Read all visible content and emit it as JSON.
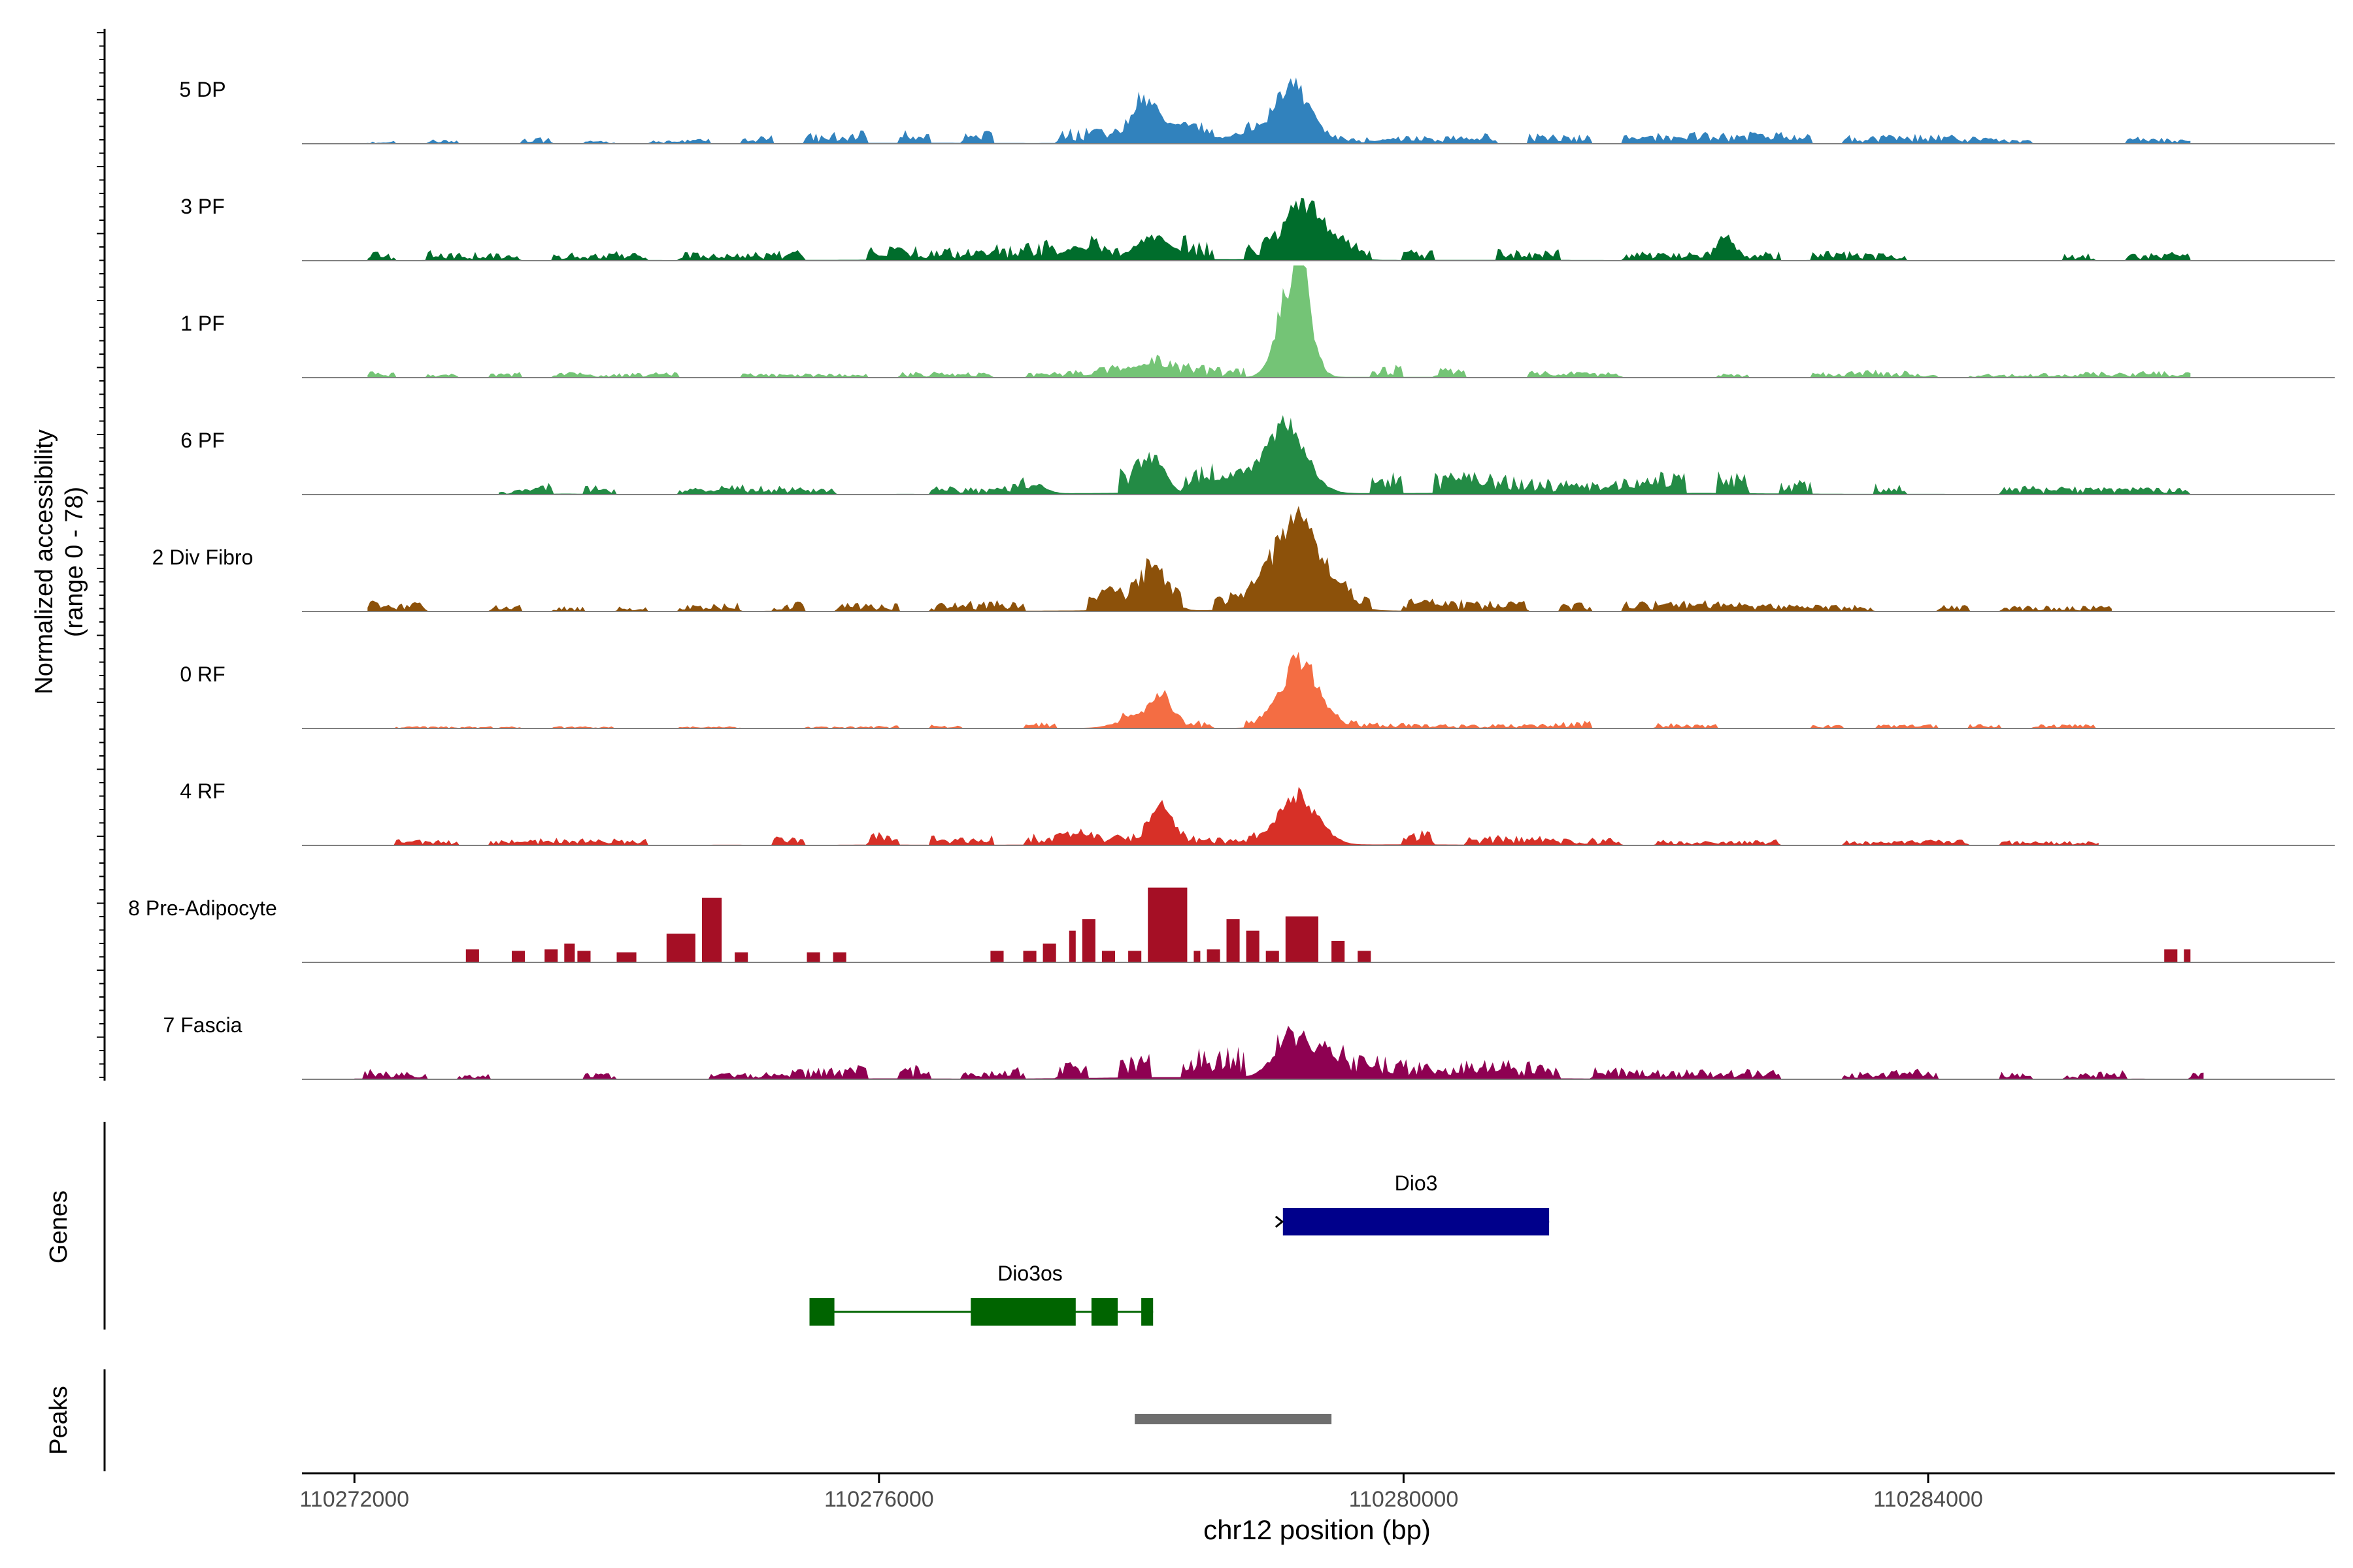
{
  "chart_data": {
    "type": "area",
    "title": "",
    "ylabel_line1": "Normalized accessibility",
    "ylabel_line2": "(range 0 - 78)",
    "xlabel": "chr12 position (bp)",
    "xlim": [
      110271600,
      110287100
    ],
    "ylim": [
      0,
      78
    ],
    "xticks": [
      110272000,
      110276000,
      110280000,
      110284000
    ],
    "xtick_labels": [
      "110272000",
      "110276000",
      "110280000",
      "110284000"
    ],
    "genes_label": "Genes",
    "peaks_label": "Peaks",
    "tracks": [
      {
        "name": "5 DP",
        "color": "#3182BD",
        "range": [
          110272000,
          110286000
        ],
        "base": [
          [
            110272200,
            1
          ],
          [
            110272600,
            2
          ],
          [
            110273000,
            1
          ],
          [
            110273400,
            3
          ],
          [
            110274000,
            1
          ],
          [
            110274500,
            2
          ],
          [
            110275100,
            4
          ],
          [
            110275800,
            6
          ],
          [
            110276400,
            7
          ],
          [
            110277200,
            5
          ],
          [
            110277600,
            8
          ],
          [
            110278600,
            6
          ],
          [
            110279800,
            3
          ],
          [
            110280600,
            5
          ],
          [
            110281600,
            4
          ],
          [
            110282000,
            5
          ],
          [
            110282700,
            6
          ],
          [
            110283400,
            4
          ],
          [
            110284000,
            5
          ],
          [
            110284600,
            2
          ],
          [
            110285200,
            4
          ],
          [
            110285900,
            3
          ]
        ],
        "peaks": [
          [
            110278050,
            28,
            110
          ],
          [
            110278350,
            10,
            120
          ],
          [
            110279150,
            38,
            130
          ],
          [
            110278750,
            6,
            110
          ]
        ]
      },
      {
        "name": "3 PF",
        "color": "#006D2C",
        "range": [
          110272100,
          110286000
        ],
        "base": [
          [
            110272200,
            4
          ],
          [
            110272600,
            5
          ],
          [
            110273200,
            3
          ],
          [
            110273800,
            4
          ],
          [
            110274300,
            5
          ],
          [
            110274800,
            3
          ],
          [
            110275300,
            5
          ],
          [
            110276000,
            7
          ],
          [
            110276600,
            6
          ],
          [
            110277000,
            8
          ],
          [
            110277600,
            9
          ],
          [
            110278600,
            10
          ],
          [
            110280000,
            5
          ],
          [
            110280800,
            6
          ],
          [
            110281400,
            5
          ],
          [
            110282000,
            4
          ],
          [
            110282600,
            4
          ],
          [
            110283200,
            5
          ],
          [
            110283800,
            3
          ],
          [
            110284400,
            4
          ],
          [
            110285000,
            3
          ],
          [
            110285600,
            4
          ]
        ],
        "peaks": [
          [
            110277500,
            8,
            120
          ],
          [
            110278100,
            16,
            140
          ],
          [
            110279200,
            40,
            120
          ],
          [
            110279450,
            10,
            120
          ],
          [
            110282450,
            12,
            60
          ]
        ]
      },
      {
        "name": "1 PF",
        "color": "#74C476",
        "range": [
          110272100,
          110286000
        ],
        "base": [
          [
            110272200,
            3
          ],
          [
            110272800,
            2
          ],
          [
            110273400,
            3
          ],
          [
            110274000,
            2
          ],
          [
            110274600,
            3
          ],
          [
            110275200,
            2
          ],
          [
            110275800,
            2
          ],
          [
            110276400,
            3
          ],
          [
            110277000,
            2
          ],
          [
            110277600,
            4
          ],
          [
            110278200,
            8
          ],
          [
            110278600,
            5
          ],
          [
            110280000,
            6
          ],
          [
            110280600,
            4
          ],
          [
            110281200,
            3
          ],
          [
            110281800,
            3
          ],
          [
            110282400,
            2
          ],
          [
            110283000,
            2
          ],
          [
            110283600,
            4
          ],
          [
            110284200,
            2
          ],
          [
            110284800,
            2
          ],
          [
            110285400,
            3
          ]
        ],
        "peaks": [
          [
            110279200,
            75,
            90
          ],
          [
            110279050,
            20,
            80
          ],
          [
            110278000,
            8,
            150
          ]
        ]
      },
      {
        "name": "6 PF",
        "color": "#238B45",
        "range": [
          110273100,
          110286100
        ],
        "base": [
          [
            110273200,
            2
          ],
          [
            110273600,
            7
          ],
          [
            110274000,
            3
          ],
          [
            110274600,
            4
          ],
          [
            110275000,
            5
          ],
          [
            110275500,
            3
          ],
          [
            110276200,
            5
          ],
          [
            110276800,
            3
          ],
          [
            110277400,
            9
          ],
          [
            110277800,
            12
          ],
          [
            110278600,
            12
          ],
          [
            110279800,
            10
          ],
          [
            110280300,
            12
          ],
          [
            110280800,
            9
          ],
          [
            110281400,
            6
          ],
          [
            110281800,
            10
          ],
          [
            110282300,
            12
          ],
          [
            110282800,
            8
          ],
          [
            110283400,
            5
          ],
          [
            110284000,
            5
          ],
          [
            110284600,
            4
          ],
          [
            110285200,
            4
          ],
          [
            110285800,
            3
          ]
        ],
        "peaks": [
          [
            110278100,
            25,
            80
          ],
          [
            110279100,
            48,
            150
          ],
          [
            110278700,
            12,
            150
          ],
          [
            110277200,
            6,
            80
          ]
        ]
      },
      {
        "name": "2 Div Fibro",
        "color": "#8C510A",
        "range": [
          110272100,
          110285400
        ],
        "base": [
          [
            110272300,
            5
          ],
          [
            110272800,
            3
          ],
          [
            110273300,
            3
          ],
          [
            110273800,
            2
          ],
          [
            110274500,
            3
          ],
          [
            110275200,
            5
          ],
          [
            110275700,
            4
          ],
          [
            110276300,
            4
          ],
          [
            110277200,
            6
          ],
          [
            110277800,
            8
          ],
          [
            110278600,
            8
          ],
          [
            110279800,
            6
          ],
          [
            110280300,
            6
          ],
          [
            110280800,
            5
          ],
          [
            110281300,
            4
          ],
          [
            110281800,
            5
          ],
          [
            110282200,
            6
          ],
          [
            110282700,
            4
          ],
          [
            110283200,
            3
          ],
          [
            110283800,
            3
          ],
          [
            110284400,
            3
          ],
          [
            110285000,
            3
          ]
        ],
        "peaks": [
          [
            110278100,
            26,
            100
          ],
          [
            110279200,
            58,
            200
          ],
          [
            110277800,
            8,
            80
          ]
        ]
      },
      {
        "name": "0 RF",
        "color": "#F46D43",
        "range": [
          110272200,
          110285500
        ],
        "base": [
          [
            110272400,
            1
          ],
          [
            110273000,
            1
          ],
          [
            110273800,
            1
          ],
          [
            110274400,
            1
          ],
          [
            110275000,
            1
          ],
          [
            110275800,
            1
          ],
          [
            110276600,
            2
          ],
          [
            110277400,
            3
          ],
          [
            110278000,
            5
          ],
          [
            110278600,
            4
          ],
          [
            110279600,
            4
          ],
          [
            110280200,
            2
          ],
          [
            110280800,
            2
          ],
          [
            110281600,
            4
          ],
          [
            110282200,
            2
          ],
          [
            110283000,
            2
          ],
          [
            110283600,
            2
          ],
          [
            110284200,
            2
          ],
          [
            110285000,
            2
          ]
        ],
        "peaks": [
          [
            110278150,
            18,
            80
          ],
          [
            110279200,
            48,
            130
          ],
          [
            110277900,
            5,
            120
          ]
        ]
      },
      {
        "name": "4 RF",
        "color": "#D73027",
        "range": [
          110272300,
          110285300
        ],
        "base": [
          [
            110272400,
            3
          ],
          [
            110273000,
            2
          ],
          [
            110273600,
            4
          ],
          [
            110274200,
            3
          ],
          [
            110274800,
            5
          ],
          [
            110275500,
            4
          ],
          [
            110276000,
            6
          ],
          [
            110276600,
            4
          ],
          [
            110277200,
            6
          ],
          [
            110277700,
            5
          ],
          [
            110278600,
            4
          ],
          [
            110279600,
            6
          ],
          [
            110280100,
            8
          ],
          [
            110280600,
            5
          ],
          [
            110281200,
            4
          ],
          [
            110281800,
            3
          ],
          [
            110282400,
            2
          ],
          [
            110283000,
            3
          ],
          [
            110283600,
            2
          ],
          [
            110284200,
            3
          ],
          [
            110284800,
            2
          ]
        ],
        "peaks": [
          [
            110278150,
            22,
            90
          ],
          [
            110279200,
            32,
            150
          ],
          [
            110277500,
            5,
            100
          ]
        ]
      }
    ],
    "pre_adipocyte": {
      "name": "8 Pre-Adipocyte",
      "color": "#A50F25",
      "blocks": [
        [
          110272850,
          110272950,
          9
        ],
        [
          110273200,
          110273300,
          8
        ],
        [
          110273450,
          110273550,
          9
        ],
        [
          110273600,
          110273680,
          13
        ],
        [
          110273700,
          110273800,
          8
        ],
        [
          110274000,
          110274150,
          7
        ],
        [
          110274380,
          110274600,
          20
        ],
        [
          110274650,
          110274800,
          45
        ],
        [
          110274900,
          110275000,
          7
        ],
        [
          110275450,
          110275550,
          7
        ],
        [
          110275650,
          110275750,
          7
        ],
        [
          110276850,
          110276950,
          8
        ],
        [
          110277100,
          110277200,
          8
        ],
        [
          110277250,
          110277350,
          13
        ],
        [
          110277450,
          110277500,
          22
        ],
        [
          110277550,
          110277650,
          30
        ],
        [
          110277700,
          110277800,
          8
        ],
        [
          110277900,
          110278000,
          8
        ],
        [
          110278050,
          110278350,
          52
        ],
        [
          110278400,
          110278450,
          8
        ],
        [
          110278500,
          110278600,
          9
        ],
        [
          110278650,
          110278750,
          30
        ],
        [
          110278800,
          110278900,
          22
        ],
        [
          110278950,
          110279050,
          8
        ],
        [
          110279100,
          110279350,
          32
        ],
        [
          110279450,
          110279550,
          15
        ],
        [
          110279650,
          110279750,
          8
        ],
        [
          110285800,
          110285900,
          9
        ],
        [
          110285950,
          110286000,
          9
        ]
      ]
    },
    "fascia": {
      "name": "7 Fascia",
      "color": "#8E0152",
      "range": [
        110272000,
        110286100
      ],
      "base": [
        [
          110272100,
          6
        ],
        [
          110272600,
          2
        ],
        [
          110273200,
          3
        ],
        [
          110273800,
          3
        ],
        [
          110274400,
          3
        ],
        [
          110275000,
          3
        ],
        [
          110275600,
          6
        ],
        [
          110276200,
          7
        ],
        [
          110276800,
          4
        ],
        [
          110277400,
          8
        ],
        [
          110278000,
          14
        ],
        [
          110278600,
          16
        ],
        [
          110279000,
          14
        ],
        [
          110279600,
          12
        ],
        [
          110280200,
          8
        ],
        [
          110280800,
          9
        ],
        [
          110281400,
          6
        ],
        [
          110282000,
          5
        ],
        [
          110282600,
          5
        ],
        [
          110283200,
          3
        ],
        [
          110283800,
          5
        ],
        [
          110284400,
          4
        ],
        [
          110285000,
          2
        ],
        [
          110285600,
          5
        ],
        [
          110286000,
          3
        ]
      ],
      "peaks": [
        [
          110279100,
          18,
          120
        ],
        [
          110279400,
          10,
          120
        ]
      ]
    },
    "genes": [
      {
        "name": "Dio3",
        "color": "#00008B",
        "strand": "+",
        "start": 110279080,
        "end": 110281110,
        "exons": [
          [
            110279080,
            110281110
          ]
        ]
      },
      {
        "name": "Dio3os",
        "color": "#006400",
        "strand": "-",
        "start": 110275470,
        "end": 110278090,
        "exons": [
          [
            110275470,
            110275660
          ],
          [
            110276700,
            110277500
          ],
          [
            110277620,
            110277820
          ],
          [
            110278000,
            110278090
          ]
        ]
      }
    ],
    "peaks": [
      [
        110277950,
        110279450
      ]
    ]
  }
}
